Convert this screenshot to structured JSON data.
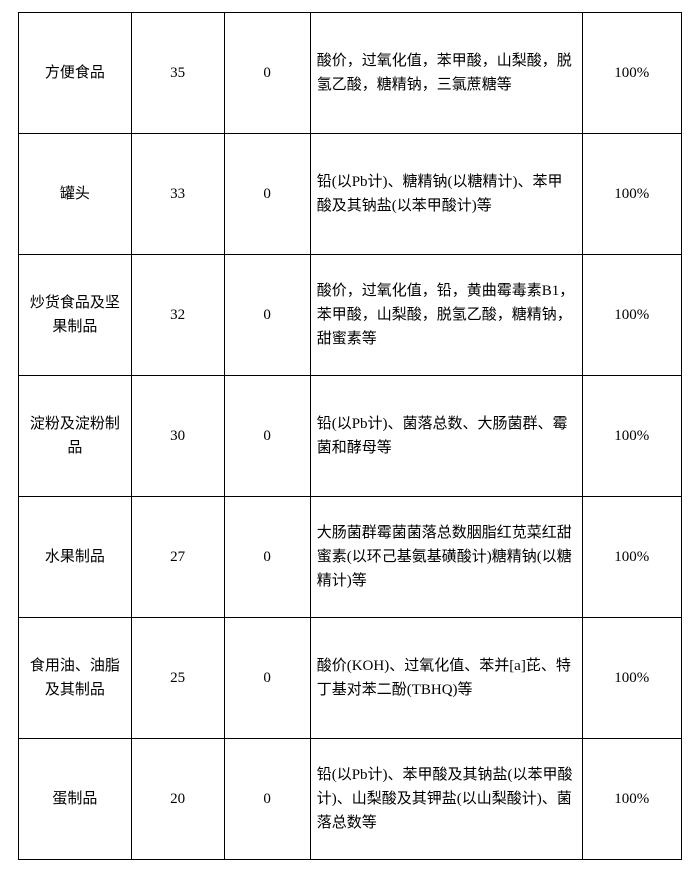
{
  "table": {
    "background_color": "#ffffff",
    "border_color": "#000000",
    "font_family": "SimSun",
    "font_size_pt": 11,
    "text_color": "#000000",
    "columns": [
      {
        "key": "category",
        "width_pct": 17,
        "align": "center"
      },
      {
        "key": "count1",
        "width_pct": 14,
        "align": "center"
      },
      {
        "key": "count2",
        "width_pct": 13,
        "align": "center"
      },
      {
        "key": "items",
        "width_pct": 41,
        "align": "left"
      },
      {
        "key": "rate",
        "width_pct": 15,
        "align": "center"
      }
    ],
    "rows": [
      {
        "category": "方便食品",
        "count1": "35",
        "count2": "0",
        "items": "酸价，过氧化值，苯甲酸，山梨酸，脱氢乙酸，糖精钠，三氯蔗糖等",
        "rate": "100%"
      },
      {
        "category": "罐头",
        "count1": "33",
        "count2": "0",
        "items": "铅(以Pb计)、糖精钠(以糖精计)、苯甲酸及其钠盐(以苯甲酸计)等",
        "rate": "100%"
      },
      {
        "category": "炒货食品及坚果制品",
        "count1": "32",
        "count2": "0",
        "items": "酸价，过氧化值，铅，黄曲霉毒素B1，苯甲酸，山梨酸，脱氢乙酸，糖精钠，甜蜜素等",
        "rate": "100%"
      },
      {
        "category": "淀粉及淀粉制品",
        "count1": "30",
        "count2": "0",
        "items": "铅(以Pb计)、菌落总数、大肠菌群、霉菌和酵母等",
        "rate": "100%"
      },
      {
        "category": "水果制品",
        "count1": "27",
        "count2": "0",
        "items": "大肠菌群霉菌菌落总数胭脂红苋菜红甜蜜素(以环己基氨基磺酸计)糖精钠(以糖精计)等",
        "rate": "100%"
      },
      {
        "category": "食用油、油脂及其制品",
        "count1": "25",
        "count2": "0",
        "items": "酸价(KOH)、过氧化值、苯并[a]芘、特丁基对苯二酚(TBHQ)等",
        "rate": "100%"
      },
      {
        "category": "蛋制品",
        "count1": "20",
        "count2": "0",
        "items": "铅(以Pb计)、苯甲酸及其钠盐(以苯甲酸计)、山梨酸及其钾盐(以山梨酸计)、菌落总数等",
        "rate": "100%"
      }
    ]
  }
}
